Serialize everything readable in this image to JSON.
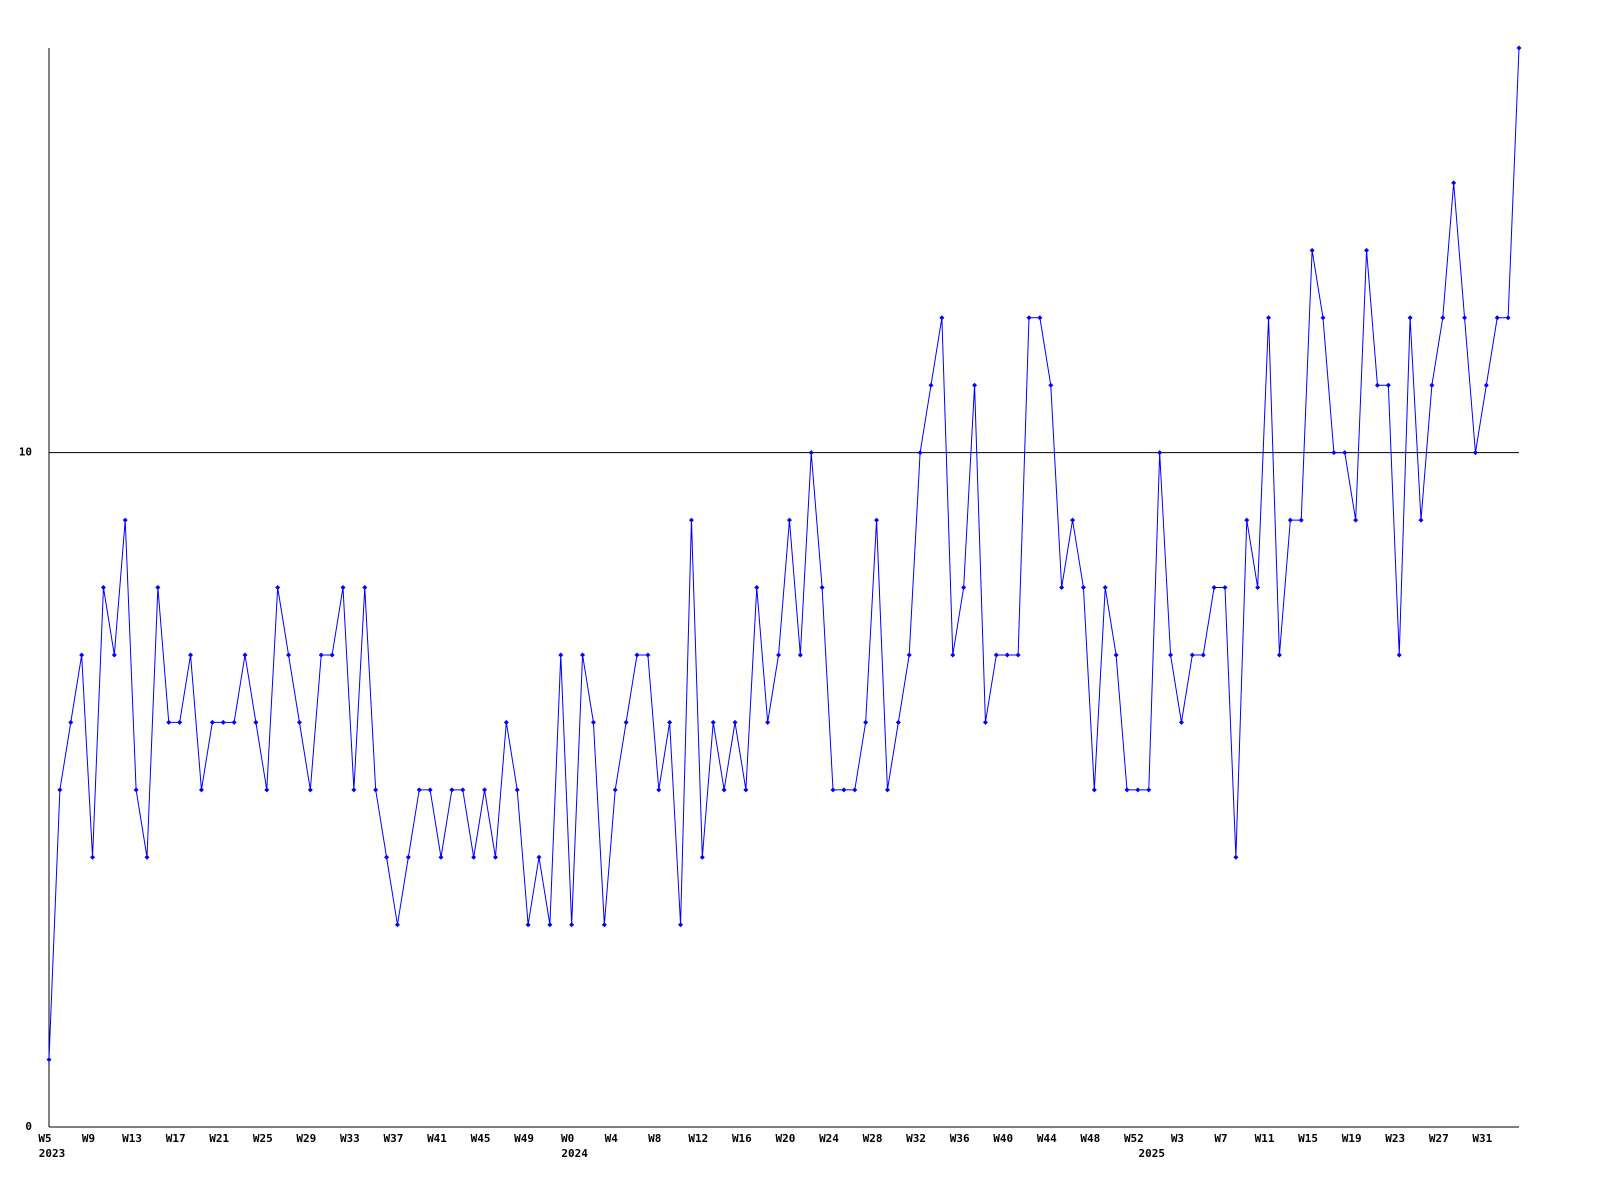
{
  "chart_data": {
    "type": "line",
    "categories": [
      "W5",
      null,
      null,
      null,
      "W9",
      null,
      null,
      null,
      "W13",
      null,
      null,
      null,
      "W17",
      null,
      null,
      null,
      "W21",
      null,
      null,
      null,
      "W25",
      null,
      null,
      null,
      "W29",
      null,
      null,
      null,
      "W33",
      null,
      null,
      null,
      "W37",
      null,
      null,
      null,
      "W41",
      null,
      null,
      null,
      "W45",
      null,
      null,
      null,
      "W49",
      null,
      null,
      null,
      "W0",
      null,
      null,
      null,
      "W4",
      null,
      null,
      null,
      "W8",
      null,
      null,
      null,
      "W12",
      null,
      null,
      null,
      "W16",
      null,
      null,
      null,
      "W20",
      null,
      null,
      null,
      "W24",
      null,
      null,
      null,
      "W28",
      null,
      null,
      null,
      "W32",
      null,
      null,
      null,
      "W36",
      null,
      null,
      null,
      "W40",
      null,
      null,
      null,
      "W44",
      null,
      null,
      null,
      "W48",
      null,
      null,
      null,
      "W52",
      null,
      null,
      null,
      "W3",
      null,
      null,
      null,
      "W7",
      null,
      null,
      null,
      "W11",
      null,
      null,
      null,
      "W15",
      null,
      null,
      null,
      "W19",
      null,
      null,
      null,
      "W23",
      null,
      null,
      null,
      "W27",
      null,
      null,
      null,
      "W31",
      null,
      null,
      null
    ],
    "year_labels": [
      "2023",
      null,
      null,
      null,
      null,
      null,
      null,
      null,
      null,
      null,
      null,
      null,
      null,
      null,
      null,
      null,
      null,
      null,
      null,
      null,
      null,
      null,
      null,
      null,
      null,
      null,
      null,
      null,
      null,
      null,
      null,
      null,
      null,
      null,
      null,
      null,
      null,
      null,
      null,
      null,
      null,
      null,
      null,
      null,
      null,
      null,
      null,
      null,
      "2024",
      null,
      null,
      null,
      null,
      null,
      null,
      null,
      null,
      null,
      null,
      null,
      null,
      null,
      null,
      null,
      null,
      null,
      null,
      null,
      null,
      null,
      null,
      null,
      null,
      null,
      null,
      null,
      null,
      null,
      null,
      null,
      null,
      null,
      null,
      null,
      null,
      null,
      null,
      null,
      null,
      null,
      null,
      null,
      null,
      null,
      null,
      null,
      null,
      null,
      null,
      null,
      null,
      "2025",
      null,
      null,
      null,
      null,
      null,
      null,
      null,
      null,
      null,
      null,
      null,
      null,
      null,
      null,
      null,
      null,
      null,
      null,
      null,
      null,
      null,
      null,
      null,
      null,
      null,
      null,
      null,
      null,
      null,
      null,
      null,
      null,
      null,
      null
    ],
    "series": [
      {
        "name": null,
        "color": "#0000ff",
        "values": [
          1,
          5,
          6,
          7,
          4,
          8,
          7,
          9,
          5,
          4,
          8,
          6,
          6,
          7,
          5,
          6,
          6,
          6,
          7,
          6,
          5,
          8,
          7,
          6,
          5,
          7,
          7,
          8,
          5,
          8,
          5,
          4,
          3,
          4,
          5,
          5,
          4,
          5,
          5,
          4,
          5,
          4,
          6,
          5,
          3,
          4,
          3,
          7,
          3,
          7,
          6,
          3,
          5,
          6,
          7,
          7,
          5,
          6,
          3,
          9,
          4,
          6,
          5,
          6,
          5,
          8,
          6,
          7,
          9,
          7,
          10,
          8,
          5,
          5,
          5,
          6,
          9,
          5,
          6,
          7,
          10,
          11,
          12,
          7,
          8,
          11,
          6,
          7,
          7,
          7,
          12,
          12,
          11,
          8,
          9,
          8,
          5,
          8,
          7,
          5,
          5,
          5,
          10,
          7,
          6,
          7,
          7,
          8,
          8,
          4,
          9,
          8,
          12,
          7,
          9,
          9,
          13,
          12,
          10,
          10,
          9,
          13,
          11,
          11,
          7,
          12,
          9,
          11,
          12,
          14,
          12,
          10,
          11,
          12,
          12,
          16
        ]
      }
    ],
    "ylim": [
      0,
      16
    ],
    "yticks": [
      0,
      10
    ],
    "grid": true
  }
}
